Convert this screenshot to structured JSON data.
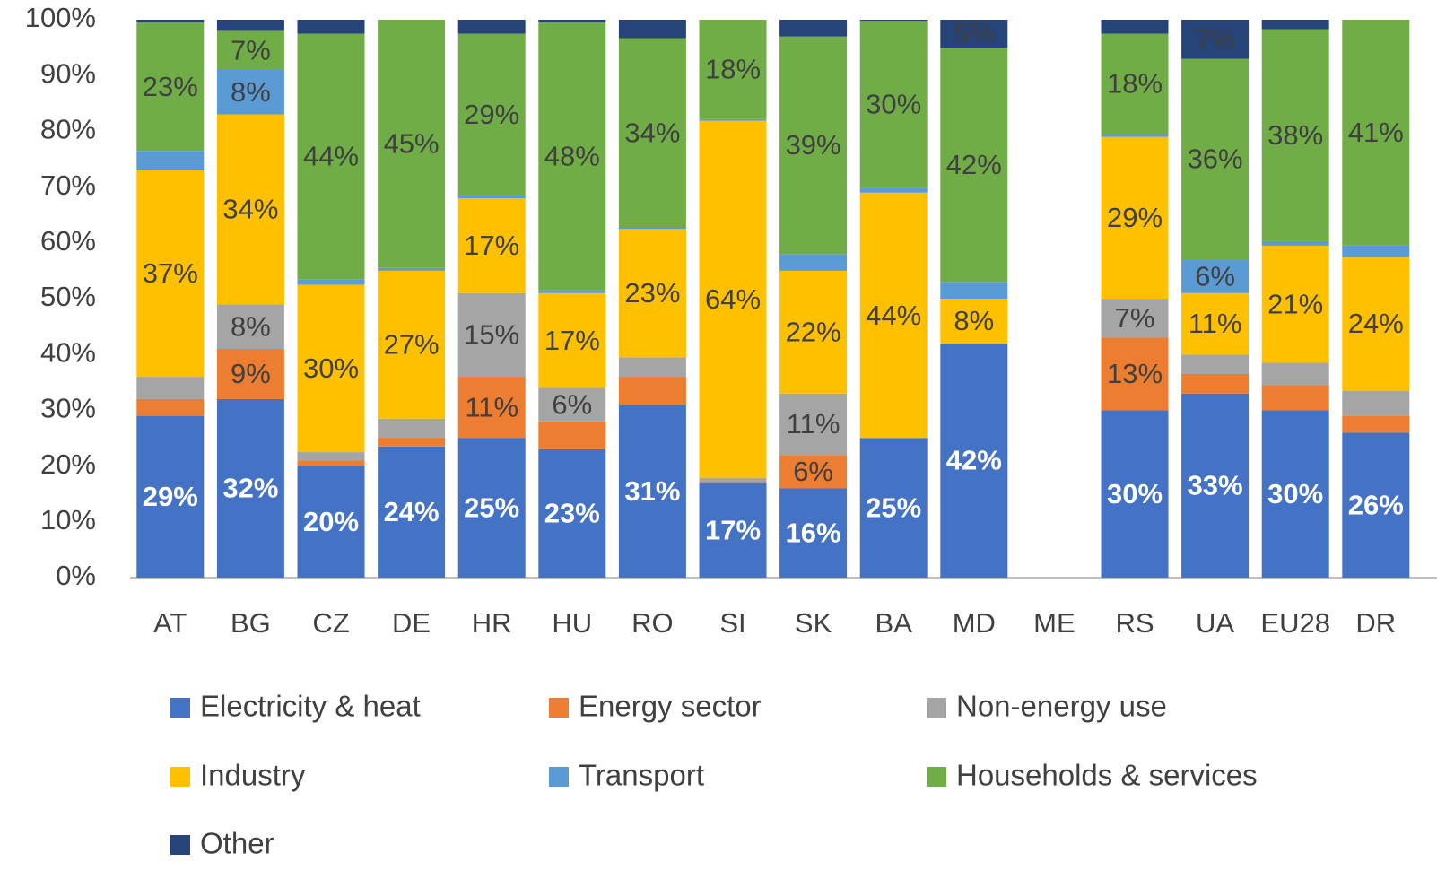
{
  "chart_data": {
    "type": "stacked-bar",
    "categories": [
      "AT",
      "BG",
      "CZ",
      "DE",
      "HR",
      "HU",
      "RO",
      "SI",
      "SK",
      "BA",
      "MD",
      "ME",
      "RS",
      "UA",
      "EU28",
      "DR"
    ],
    "series": [
      {
        "name": "Electricity & heat",
        "color": "#4472c4",
        "values": [
          29,
          32,
          20,
          23.5,
          25,
          23,
          31,
          17,
          16,
          25,
          42,
          null,
          30,
          33,
          30,
          26
        ],
        "value_labels": [
          "29%",
          "32%",
          "20%",
          "24%",
          "25%",
          "23%",
          "31%",
          "17%",
          "16%",
          "25%",
          "42%",
          null,
          "30%",
          "33%",
          "30%",
          "26%"
        ]
      },
      {
        "name": "Energy sector",
        "color": "#ed7d31",
        "values": [
          3,
          9,
          1,
          1.5,
          11,
          5,
          5,
          0.2,
          6,
          0,
          0,
          null,
          13,
          3.5,
          4.5,
          3
        ],
        "value_labels": [
          null,
          "9%",
          null,
          null,
          "11%",
          null,
          null,
          null,
          "6%",
          null,
          null,
          null,
          "13%",
          null,
          null,
          null
        ]
      },
      {
        "name": "Non-energy use",
        "color": "#a5a5a5",
        "values": [
          4,
          8,
          1.5,
          3.5,
          15,
          6,
          3.5,
          0.7,
          11,
          0,
          0,
          null,
          7,
          3.5,
          4,
          4.5
        ],
        "value_labels": [
          null,
          "8%",
          null,
          null,
          "15%",
          "6%",
          null,
          null,
          "11%",
          null,
          null,
          null,
          "7%",
          null,
          null,
          null
        ]
      },
      {
        "name": "Industry",
        "color": "#ffc000",
        "values": [
          37,
          34,
          30,
          26.5,
          17,
          17,
          23,
          64,
          22,
          44,
          8,
          null,
          29,
          11,
          21,
          24
        ],
        "value_labels": [
          "37%",
          "34%",
          "30%",
          "27%",
          "17%",
          "17%",
          "23%",
          "64%",
          "22%",
          "44%",
          "8%",
          null,
          "29%",
          "11%",
          "21%",
          "24%"
        ]
      },
      {
        "name": "Transport",
        "color": "#5b9bd5",
        "values": [
          3.5,
          8,
          1,
          0.5,
          0.5,
          0.5,
          0.2,
          0.3,
          3,
          0.8,
          3,
          null,
          0.5,
          6,
          0.8,
          2
        ],
        "value_labels": [
          null,
          "8%",
          null,
          null,
          null,
          null,
          null,
          null,
          null,
          null,
          null,
          null,
          null,
          "6%",
          null,
          null
        ]
      },
      {
        "name": "Households & services",
        "color": "#70ad47",
        "values": [
          23,
          7,
          44,
          44.5,
          29,
          48,
          34,
          17.8,
          39,
          30,
          42,
          null,
          18,
          36,
          38,
          40.5
        ],
        "value_labels": [
          "23%",
          "7%",
          "44%",
          "45%",
          "29%",
          "48%",
          "34%",
          "18%",
          "39%",
          "30%",
          "42%",
          null,
          "18%",
          "36%",
          "38%",
          "41%"
        ]
      },
      {
        "name": "Other",
        "color": "#264478",
        "values": [
          0.5,
          2,
          2.5,
          0,
          2.5,
          0.5,
          3.3,
          0,
          3,
          0.2,
          5,
          null,
          2.5,
          7,
          1.7,
          0
        ],
        "value_labels": [
          null,
          null,
          null,
          null,
          null,
          null,
          null,
          null,
          null,
          null,
          "5%",
          null,
          null,
          "7%",
          null,
          null
        ]
      }
    ],
    "ylim": [
      0,
      100
    ],
    "yticks": [
      {
        "value": 0,
        "label": "0%"
      },
      {
        "value": 10,
        "label": "10%"
      },
      {
        "value": 20,
        "label": "20%"
      },
      {
        "value": 30,
        "label": "30%"
      },
      {
        "value": 40,
        "label": "40%"
      },
      {
        "value": 50,
        "label": "50%"
      },
      {
        "value": 60,
        "label": "60%"
      },
      {
        "value": 70,
        "label": "70%"
      },
      {
        "value": 80,
        "label": "80%"
      },
      {
        "value": 90,
        "label": "90%"
      },
      {
        "value": 100,
        "label": "100%"
      }
    ],
    "grid": false,
    "legend": "bottom"
  }
}
